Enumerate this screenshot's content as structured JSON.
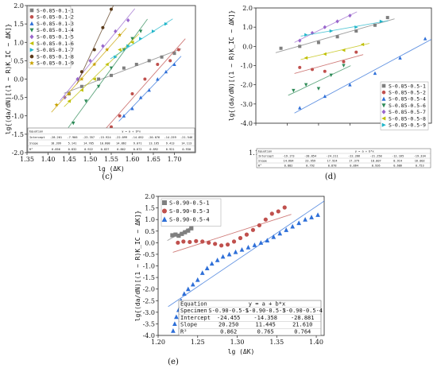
{
  "chart_data": [
    {
      "panel": "(c)",
      "type": "scatter",
      "xlabel": "lg (ΔK)",
      "ylabel": "lg{(da/dN)[(1 − R)K_IC − ΔK]}",
      "xlim": [
        1.35,
        1.75
      ],
      "ylim": [
        -2.0,
        2.0
      ],
      "xticks": [
        "1.35",
        "1.40",
        "1.45",
        "1.50",
        "1.55",
        "1.60",
        "1.65",
        "1.70"
      ],
      "yticks": [
        "2.0",
        "1.5",
        "1.0",
        "0.5",
        "0.0",
        "-0.5",
        "-1.0",
        "-1.5",
        "-2.0"
      ],
      "legend_position": "top-left",
      "series": [
        {
          "name": "S-0.85-0.1-1",
          "color": "#7f7f7f",
          "marker": "square",
          "x": [
            1.45,
            1.48,
            1.52,
            1.55,
            1.58,
            1.61,
            1.64,
            1.67,
            1.7
          ],
          "y": [
            -0.4,
            -0.2,
            0.0,
            0.1,
            0.3,
            0.4,
            0.5,
            0.6,
            0.7
          ]
        },
        {
          "name": "S-0.85-0.1-2",
          "color": "#c0504d",
          "marker": "circle",
          "x": [
            1.55,
            1.57,
            1.6,
            1.63,
            1.66,
            1.69,
            1.71
          ],
          "y": [
            -1.3,
            -1.0,
            -0.4,
            0.0,
            0.4,
            0.5,
            0.8
          ]
        },
        {
          "name": "S-0.85-0.1-3",
          "color": "#2e6fd8",
          "marker": "triangle-up",
          "x": [
            1.58,
            1.6,
            1.62,
            1.64,
            1.66,
            1.68,
            1.7
          ],
          "y": [
            -1.0,
            -0.8,
            -0.5,
            -0.3,
            0.0,
            0.2,
            0.4
          ]
        },
        {
          "name": "S-0.85-0.1-4",
          "color": "#2e8b57",
          "marker": "triangle-down",
          "x": [
            1.46,
            1.49,
            1.52,
            1.55,
            1.58,
            1.6,
            1.62
          ],
          "y": [
            -1.2,
            -0.6,
            -0.2,
            0.3,
            0.8,
            1.1,
            1.3
          ]
        },
        {
          "name": "S-0.85-0.1-5",
          "color": "#9966cc",
          "marker": "diamond",
          "x": [
            1.44,
            1.47,
            1.5,
            1.53,
            1.56,
            1.59
          ],
          "y": [
            -0.5,
            0.0,
            0.5,
            0.9,
            1.3,
            1.6
          ]
        },
        {
          "name": "S-0.85-0.1-6",
          "color": "#bfbf00",
          "marker": "triangle-left",
          "x": [
            1.45,
            1.48,
            1.51,
            1.54,
            1.57,
            1.6
          ],
          "y": [
            -0.6,
            -0.3,
            0.0,
            0.4,
            0.8,
            1.0
          ]
        },
        {
          "name": "S-0.85-0.1-7",
          "color": "#1fb5c9",
          "marker": "triangle-right",
          "x": [
            1.56,
            1.59,
            1.62,
            1.65,
            1.68
          ],
          "y": [
            0.6,
            0.9,
            1.1,
            1.3,
            1.5
          ]
        },
        {
          "name": "S-0.85-0.1-8",
          "color": "#5a3a1a",
          "marker": "circle",
          "x": [
            1.48,
            1.51,
            1.53,
            1.55
          ],
          "y": [
            0.2,
            0.8,
            1.4,
            1.9
          ]
        },
        {
          "name": "S-0.85-0.1-9",
          "color": "#c8a200",
          "marker": "star",
          "x": [
            1.42,
            1.45,
            1.48,
            1.51,
            1.54,
            1.57
          ],
          "y": [
            -0.7,
            -0.4,
            0.0,
            0.4,
            0.8,
            1.2
          ]
        }
      ],
      "table": {
        "header": [
          "Equation",
          "y = a + b*x"
        ],
        "rows": [
          [
            "Intercept",
            "-28.261",
            "-7.966",
            "-23.357",
            "-15.924",
            "-22.099",
            "-14.052",
            "-20.076",
            "-14.259",
            "-21.546"
          ],
          [
            "Slope",
            "18.399",
            "5.141",
            "14.785",
            "10.608",
            "14.862",
            "9.071",
            "13.165",
            "9.413",
            "14.113"
          ],
          [
            "R²",
            "0.856",
            "0.832",
            "0.922",
            "0.837",
            "0.862",
            "0.872",
            "0.892",
            "0.921",
            "0.930"
          ]
        ]
      }
    },
    {
      "panel": "(d)",
      "type": "scatter",
      "xlabel": "lg (ΔK)",
      "ylabel": "lg{(da/dN)[(1 − R)K_IC − ΔK]}",
      "xlim": [
        1.15,
        1.43
      ],
      "ylim": [
        -4.0,
        2.0
      ],
      "xticks": [
        "1.15",
        "1.20",
        "1.25",
        "1.30",
        "1.35",
        "1.40"
      ],
      "yticks": [
        "2.0",
        "1.0",
        "0.0",
        "-1.0",
        "-2.0",
        "-3.0",
        "-4.0"
      ],
      "legend_position": "bottom-right",
      "series": [
        {
          "name": "S-0.85-0.5-1",
          "color": "#7f7f7f",
          "marker": "square",
          "x": [
            1.19,
            1.22,
            1.25,
            1.28,
            1.31,
            1.34,
            1.36
          ],
          "y": [
            -0.1,
            0.0,
            0.2,
            0.5,
            0.8,
            1.1,
            1.5
          ]
        },
        {
          "name": "S-0.85-0.5-2",
          "color": "#c0504d",
          "marker": "circle",
          "x": [
            1.22,
            1.24,
            1.26,
            1.29,
            1.31
          ],
          "y": [
            -1.1,
            -1.2,
            -1.3,
            -0.8,
            -0.3
          ]
        },
        {
          "name": "S-0.85-0.5-4",
          "color": "#2e6fd8",
          "marker": "triangle-up",
          "x": [
            1.22,
            1.26,
            1.3,
            1.34,
            1.38,
            1.42
          ],
          "y": [
            -3.2,
            -2.6,
            -2.0,
            -1.4,
            -0.6,
            0.4
          ]
        },
        {
          "name": "S-0.85-0.5-6",
          "color": "#2e8b57",
          "marker": "triangle-down",
          "x": [
            1.21,
            1.23,
            1.25,
            1.27,
            1.29
          ],
          "y": [
            -2.3,
            -2.0,
            -2.2,
            -1.5,
            -1.0
          ]
        },
        {
          "name": "S-0.85-0.5-7",
          "color": "#9966cc",
          "marker": "diamond",
          "x": [
            1.22,
            1.24,
            1.26,
            1.28,
            1.3
          ],
          "y": [
            0.3,
            0.7,
            1.0,
            1.3,
            1.6
          ]
        },
        {
          "name": "S-0.85-0.5-8",
          "color": "#bfbf00",
          "marker": "triangle-left",
          "x": [
            1.23,
            1.26,
            1.29,
            1.32
          ],
          "y": [
            -0.6,
            -0.4,
            -0.2,
            0.1
          ]
        },
        {
          "name": "S-0.85-0.5-9",
          "color": "#1fb5c9",
          "marker": "triangle-right",
          "x": [
            1.23,
            1.27,
            1.31,
            1.35
          ],
          "y": [
            0.6,
            0.8,
            1.0,
            1.3
          ]
        }
      ],
      "table": {
        "header": [
          "Equation",
          "y = a + b*x"
        ],
        "rows": [
          [
            "Intercept",
            "-19.173",
            "-28.854",
            "-24.211",
            "-22.266",
            "-21.258",
            "-12.165",
            "-19.334"
          ],
          [
            "Slope",
            "14.684",
            "23.959",
            "17.924",
            "17.379",
            "18.007",
            "8.914",
            "16.002"
          ],
          [
            "R²",
            "0.882",
            "0.792",
            "0.878",
            "0.864",
            "0.926",
            "0.686",
            "0.753"
          ]
        ]
      }
    },
    {
      "panel": "(e)",
      "type": "scatter",
      "xlabel": "lg (ΔK)",
      "ylabel": "lg{(da/dN)[(1 − R)K_IC − ΔK]}",
      "xlim": [
        1.2,
        1.41
      ],
      "ylim": [
        -4.0,
        2.0
      ],
      "xticks": [
        "1.20",
        "1.25",
        "1.30",
        "1.35",
        "1.40"
      ],
      "yticks": [
        "2.0",
        "1.5",
        "1.0",
        "0.5",
        "0.0",
        "-0.5",
        "-1.0",
        "-1.5",
        "-2.0",
        "-2.5",
        "-3.0",
        "-3.5",
        "-4.0"
      ],
      "legend_position": "top-left",
      "series": [
        {
          "name": "S-0.90-0.5-1",
          "color": "#7f7f7f",
          "marker": "square",
          "x": [
            1.218,
            1.222,
            1.226,
            1.23,
            1.234,
            1.238,
            1.242,
            1.246
          ],
          "y": [
            0.32,
            0.35,
            0.3,
            0.38,
            0.45,
            0.52,
            0.62,
            0.95
          ]
        },
        {
          "name": "S-0.90-0.5-3",
          "color": "#c0504d",
          "marker": "circle",
          "x": [
            1.225,
            1.232,
            1.24,
            1.248,
            1.256,
            1.264,
            1.272,
            1.28,
            1.288,
            1.296,
            1.304,
            1.312,
            1.32,
            1.328,
            1.336,
            1.344,
            1.352,
            1.36
          ],
          "y": [
            0.0,
            0.05,
            0.03,
            0.07,
            0.05,
            0.0,
            -0.05,
            -0.12,
            -0.08,
            0.05,
            0.2,
            0.35,
            0.55,
            0.75,
            1.0,
            1.25,
            1.35,
            1.52
          ]
        },
        {
          "name": "S-0.90-0.5-4",
          "color": "#2e6fd8",
          "marker": "triangle-up",
          "x": [
            1.219,
            1.221,
            1.223,
            1.226,
            1.229,
            1.233,
            1.238,
            1.244,
            1.25,
            1.256,
            1.262,
            1.268,
            1.275,
            1.282,
            1.29,
            1.298,
            1.306,
            1.314,
            1.322,
            1.33,
            1.338,
            1.346,
            1.354,
            1.362,
            1.37,
            1.378,
            1.386,
            1.394,
            1.402
          ],
          "y": [
            -3.8,
            -3.5,
            -3.2,
            -2.9,
            -2.5,
            -2.2,
            -2.0,
            -1.8,
            -1.6,
            -1.3,
            -1.1,
            -0.9,
            -0.75,
            -0.6,
            -0.5,
            -0.4,
            -0.3,
            -0.2,
            -0.1,
            0.0,
            0.1,
            0.25,
            0.4,
            0.55,
            0.7,
            0.85,
            1.0,
            1.1,
            1.2
          ]
        }
      ],
      "table": {
        "header": [
          "Equation",
          "y = a + b*x"
        ],
        "columns": [
          "S-0.90-0.5-1",
          "S-0.90-0.5-3",
          "S-0.90-0.5-4"
        ],
        "rows": [
          [
            "Specimen",
            "S-0.90-0.5-1",
            "S-0.90-0.5-3",
            "S-0.90-0.5-4"
          ],
          [
            "Intercept",
            "-24.455",
            "-14.358",
            "-28.881"
          ],
          [
            "Slope",
            "20.250",
            "11.445",
            "21.610"
          ],
          [
            "R²",
            "0.862",
            "0.765",
            "0.764"
          ]
        ]
      }
    }
  ]
}
